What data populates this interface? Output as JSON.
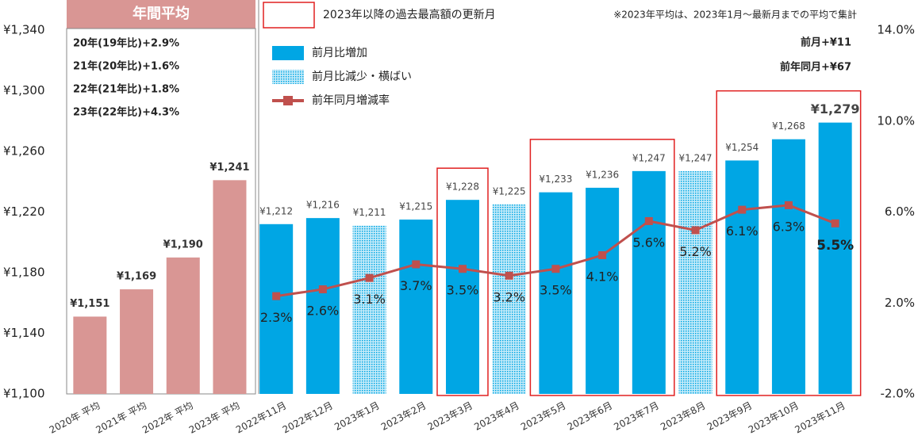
{
  "chart_data": {
    "type": "bar",
    "categories": [
      "2020年 平均",
      "2021年 平均",
      "2022年 平均",
      "2023年 平均",
      "2022年11月",
      "2022年12月",
      "2023年1月",
      "2023年2月",
      "2023年3月",
      "2023年4月",
      "2023年5月",
      "2023年6月",
      "2023年7月",
      "2023年8月",
      "2023年9月",
      "2023年10月",
      "2023年11月"
    ],
    "annual_bars": {
      "color": "#d99694",
      "values": [
        1151,
        1169,
        1190,
        1241,
        null,
        null,
        null,
        null,
        null,
        null,
        null,
        null,
        null,
        null,
        null,
        null,
        null
      ],
      "value_labels": [
        "¥1,151",
        "¥1,169",
        "¥1,190",
        "¥1,241",
        null,
        null,
        null,
        null,
        null,
        null,
        null,
        null,
        null,
        null,
        null,
        null,
        null
      ]
    },
    "series": [
      {
        "name": "前月比増加",
        "color": "#00a6e4",
        "values": [
          null,
          null,
          null,
          null,
          1212,
          1216,
          null,
          1215,
          1228,
          null,
          1233,
          1236,
          1247,
          null,
          1254,
          1268,
          1279
        ],
        "value_labels": [
          null,
          null,
          null,
          null,
          "¥1,212",
          "¥1,216",
          null,
          "¥1,215",
          "¥1,228",
          null,
          "¥1,233",
          "¥1,236",
          "¥1,247",
          null,
          "¥1,254",
          "¥1,268",
          "¥1,279"
        ]
      },
      {
        "name": "前月比減少・横ばい",
        "color": "#7fd0ef",
        "pattern": "dots",
        "values": [
          null,
          null,
          null,
          null,
          null,
          null,
          1211,
          null,
          null,
          1225,
          null,
          null,
          null,
          1247,
          null,
          null,
          null
        ],
        "value_labels": [
          null,
          null,
          null,
          null,
          null,
          null,
          "¥1,211",
          null,
          null,
          "¥1,225",
          null,
          null,
          null,
          "¥1,247",
          null,
          null,
          null
        ]
      },
      {
        "name": "前年同月増減率",
        "color": "#c0504d",
        "axis": "y2",
        "type": "line",
        "values": [
          null,
          null,
          null,
          null,
          2.3,
          2.6,
          3.1,
          3.7,
          3.5,
          3.2,
          3.5,
          4.1,
          5.6,
          5.2,
          6.1,
          6.3,
          5.5
        ],
        "value_labels": [
          null,
          null,
          null,
          null,
          "2.3%",
          "2.6%",
          "3.1%",
          "3.7%",
          "3.5%",
          "3.2%",
          "3.5%",
          "4.1%",
          "5.6%",
          "5.2%",
          "6.1%",
          "6.3%",
          "5.5%"
        ]
      }
    ],
    "ylim": [
      1100,
      1340
    ],
    "yticks": [
      {
        "value": 1100,
        "label": "¥1,100"
      },
      {
        "value": 1140,
        "label": "¥1,140"
      },
      {
        "value": 1180,
        "label": "¥1,180"
      },
      {
        "value": 1220,
        "label": "¥1,220"
      },
      {
        "value": 1260,
        "label": "¥1,260"
      },
      {
        "value": 1300,
        "label": "¥1,300"
      },
      {
        "value": 1340,
        "label": "¥1,340"
      }
    ],
    "y2lim": [
      -2,
      14
    ],
    "y2ticks": [
      {
        "value": -2,
        "label": "-2.0%"
      },
      {
        "value": 2,
        "label": "2.0%"
      },
      {
        "value": 6,
        "label": "6.0%"
      },
      {
        "value": 10,
        "label": "10.0%"
      },
      {
        "value": 14,
        "label": "14.0%"
      }
    ],
    "grid": false,
    "highlight_color": "#e02020",
    "highlights": [
      [
        8,
        8
      ],
      [
        10,
        12
      ],
      [
        14,
        16
      ]
    ],
    "annotations": {
      "annual_header": "年間平均",
      "annual_growth": [
        "20年(19年比)+2.9%",
        "21年(20年比)+1.6%",
        "22年(21年比)+1.8%",
        "23年(22年比)+4.3%"
      ],
      "highlight_legend": "2023年以降の過去最高額の更新月",
      "note": "※2023年平均は、2023年1月～最新月までの平均で集計",
      "mom": "前月+¥11",
      "yoy": "前年同月+¥67"
    }
  }
}
